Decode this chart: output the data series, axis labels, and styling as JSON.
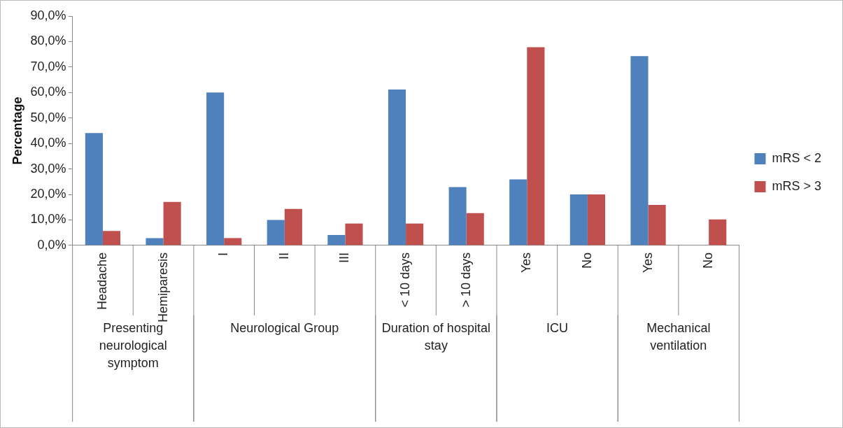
{
  "chart_data": {
    "type": "bar",
    "ylabel": "Percentage",
    "categories": [
      "Headache",
      "Hemiparesis",
      "I",
      "II",
      "III",
      "< 10 days",
      "> 10 days",
      "Yes",
      "No",
      "Yes",
      "No"
    ],
    "series": [
      {
        "name": "mRS < 2",
        "color": "#4f81bd",
        "values": [
          44.1,
          2.9,
          60.0,
          10.0,
          4.1,
          61.2,
          22.9,
          25.9,
          20.0,
          74.3,
          0
        ]
      },
      {
        "name": "mRS > 3",
        "color": "#c0504d",
        "values": [
          5.7,
          17.1,
          2.9,
          14.3,
          8.6,
          8.6,
          12.7,
          77.8,
          20.0,
          15.9,
          10.2
        ]
      }
    ],
    "ylim": [
      0,
      90
    ],
    "yticks": [
      {
        "value": 0,
        "label": "0,0%"
      },
      {
        "value": 10,
        "label": "10,0%"
      },
      {
        "value": 20,
        "label": "20,0%"
      },
      {
        "value": 30,
        "label": "30,0%"
      },
      {
        "value": 40,
        "label": "40,0%"
      },
      {
        "value": 50,
        "label": "50,0%"
      },
      {
        "value": 60,
        "label": "60,0%"
      },
      {
        "value": 70,
        "label": "70,0%"
      },
      {
        "value": 80,
        "label": "80,0%"
      },
      {
        "value": 90,
        "label": "90,0%"
      }
    ],
    "annotations": [
      "Presenting neurological symptom",
      "Neurological Group",
      "Duration of hospital stay",
      "ICU",
      "Mechanical ventilation"
    ],
    "grid": false,
    "legend": "right"
  }
}
